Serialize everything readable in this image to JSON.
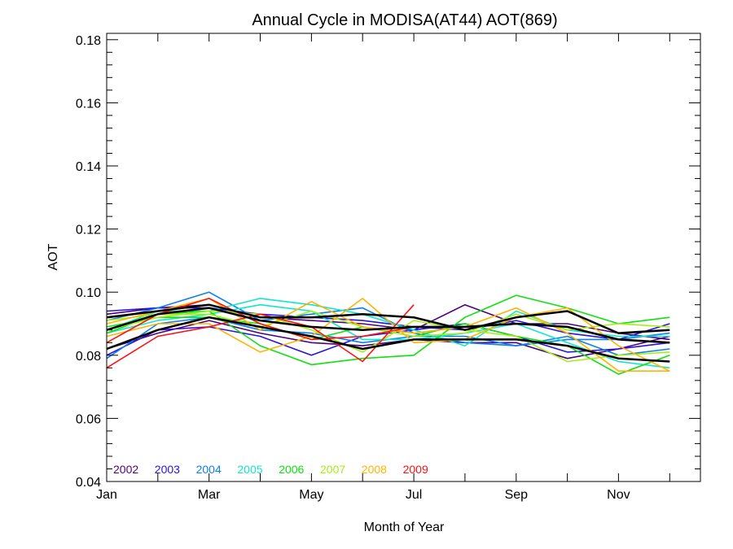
{
  "chart_data": {
    "type": "line",
    "title": "Annual Cycle in MODISA(AT44) AOT(869)",
    "xlabel": "Month of Year",
    "ylabel": "AOT",
    "xlim": [
      1,
      12.6
    ],
    "ylim": [
      0.04,
      0.182
    ],
    "x_ticks": [
      {
        "value": 1,
        "label": "Jan"
      },
      {
        "value": 3,
        "label": "Mar"
      },
      {
        "value": 5,
        "label": "May"
      },
      {
        "value": 7,
        "label": "Jul"
      },
      {
        "value": 9,
        "label": "Sep"
      },
      {
        "value": 11,
        "label": "Nov"
      }
    ],
    "y_ticks": [
      {
        "value": 0.04,
        "label": "0.04"
      },
      {
        "value": 0.06,
        "label": "0.06"
      },
      {
        "value": 0.08,
        "label": "0.08"
      },
      {
        "value": 0.1,
        "label": "0.10"
      },
      {
        "value": 0.12,
        "label": "0.12"
      },
      {
        "value": 0.14,
        "label": "0.14"
      },
      {
        "value": 0.16,
        "label": "0.16"
      },
      {
        "value": 0.18,
        "label": "0.18"
      }
    ],
    "x_minor_step": 1,
    "y_minor_step": 0.004,
    "legend_position": "bottom-left",
    "x": [
      1,
      2,
      3,
      4,
      5,
      6,
      7,
      8,
      9,
      10,
      11,
      12
    ],
    "series": [
      {
        "name": "2002",
        "color": "#4b0082",
        "lines": [
          [
            0.093,
            0.095,
            0.096,
            0.092,
            0.091,
            0.09,
            0.088,
            0.096,
            0.09,
            0.09,
            0.087,
            0.085
          ],
          [
            0.082,
            0.087,
            0.091,
            0.087,
            0.084,
            0.083,
            0.085,
            0.084,
            0.084,
            0.079,
            0.082,
            0.086
          ]
        ]
      },
      {
        "name": "2003",
        "color": "#2a12e0",
        "lines": [
          [
            0.094,
            0.095,
            0.095,
            0.093,
            0.092,
            0.091,
            0.089,
            0.088,
            0.091,
            0.087,
            0.085,
            0.09
          ],
          [
            0.08,
            0.088,
            0.089,
            0.086,
            0.08,
            0.086,
            0.088,
            0.09,
            0.086,
            0.081,
            0.082,
            0.084
          ]
        ]
      },
      {
        "name": "2004",
        "color": "#0b7ef0",
        "lines": [
          [
            0.091,
            0.095,
            0.1,
            0.091,
            0.093,
            0.095,
            0.087,
            0.084,
            0.083,
            0.085,
            0.085,
            0.087
          ],
          [
            0.079,
            0.09,
            0.092,
            0.088,
            0.087,
            0.084,
            0.086,
            0.086,
            0.083,
            0.086,
            0.08,
            0.082
          ]
        ]
      },
      {
        "name": "2005",
        "color": "#12e6c8",
        "lines": [
          [
            0.088,
            0.094,
            0.094,
            0.098,
            0.096,
            0.093,
            0.088,
            0.083,
            0.094,
            0.088,
            0.086,
            0.086
          ],
          [
            0.087,
            0.091,
            0.093,
            0.096,
            0.094,
            0.085,
            0.085,
            0.087,
            0.09,
            0.084,
            0.078,
            0.076
          ]
        ]
      },
      {
        "name": "2006",
        "color": "#10e010",
        "lines": [
          [
            0.087,
            0.093,
            0.094,
            0.083,
            0.077,
            0.079,
            0.08,
            0.092,
            0.099,
            0.095,
            0.09,
            0.092
          ],
          [
            0.089,
            0.092,
            0.092,
            0.09,
            0.085,
            0.089,
            0.086,
            0.09,
            0.086,
            0.083,
            0.074,
            0.08
          ]
        ]
      },
      {
        "name": "2007",
        "color": "#a6ee18",
        "lines": [
          [
            0.091,
            0.093,
            0.093,
            0.089,
            0.094,
            0.089,
            0.086,
            0.087,
            0.093,
            0.088,
            0.09,
            0.089
          ],
          [
            0.088,
            0.092,
            0.094,
            0.093,
            0.088,
            0.081,
            0.091,
            0.088,
            0.086,
            0.078,
            0.08,
            0.081
          ]
        ]
      },
      {
        "name": "2008",
        "color": "#ffb400",
        "lines": [
          [
            0.086,
            0.09,
            0.09,
            0.081,
            0.086,
            0.098,
            0.084,
            0.085,
            0.092,
            0.095,
            0.083,
            0.075
          ],
          [
            0.09,
            0.094,
            0.098,
            0.088,
            0.097,
            0.089,
            0.087,
            0.089,
            0.095,
            0.087,
            0.075,
            0.075
          ]
        ]
      },
      {
        "name": "2009",
        "color": "#ff1010",
        "lines": [
          [
            0.076,
            0.086,
            0.089,
            0.093,
            0.089,
            0.078,
            0.096
          ],
          [
            0.084,
            0.093,
            0.098,
            0.09,
            0.085,
            0.086,
            0.089
          ]
        ]
      },
      {
        "name": "",
        "color": "#000000",
        "width": 2.5,
        "lines": [
          [
            0.092,
            0.094,
            0.096,
            0.092,
            0.092,
            0.093,
            0.092,
            0.088,
            0.092,
            0.094,
            0.087,
            0.088
          ],
          [
            0.088,
            0.093,
            0.095,
            0.091,
            0.089,
            0.088,
            0.089,
            0.089,
            0.09,
            0.089,
            0.085,
            0.084
          ],
          [
            0.082,
            0.088,
            0.092,
            0.089,
            0.086,
            0.082,
            0.085,
            0.085,
            0.085,
            0.083,
            0.079,
            0.078
          ]
        ]
      }
    ]
  }
}
